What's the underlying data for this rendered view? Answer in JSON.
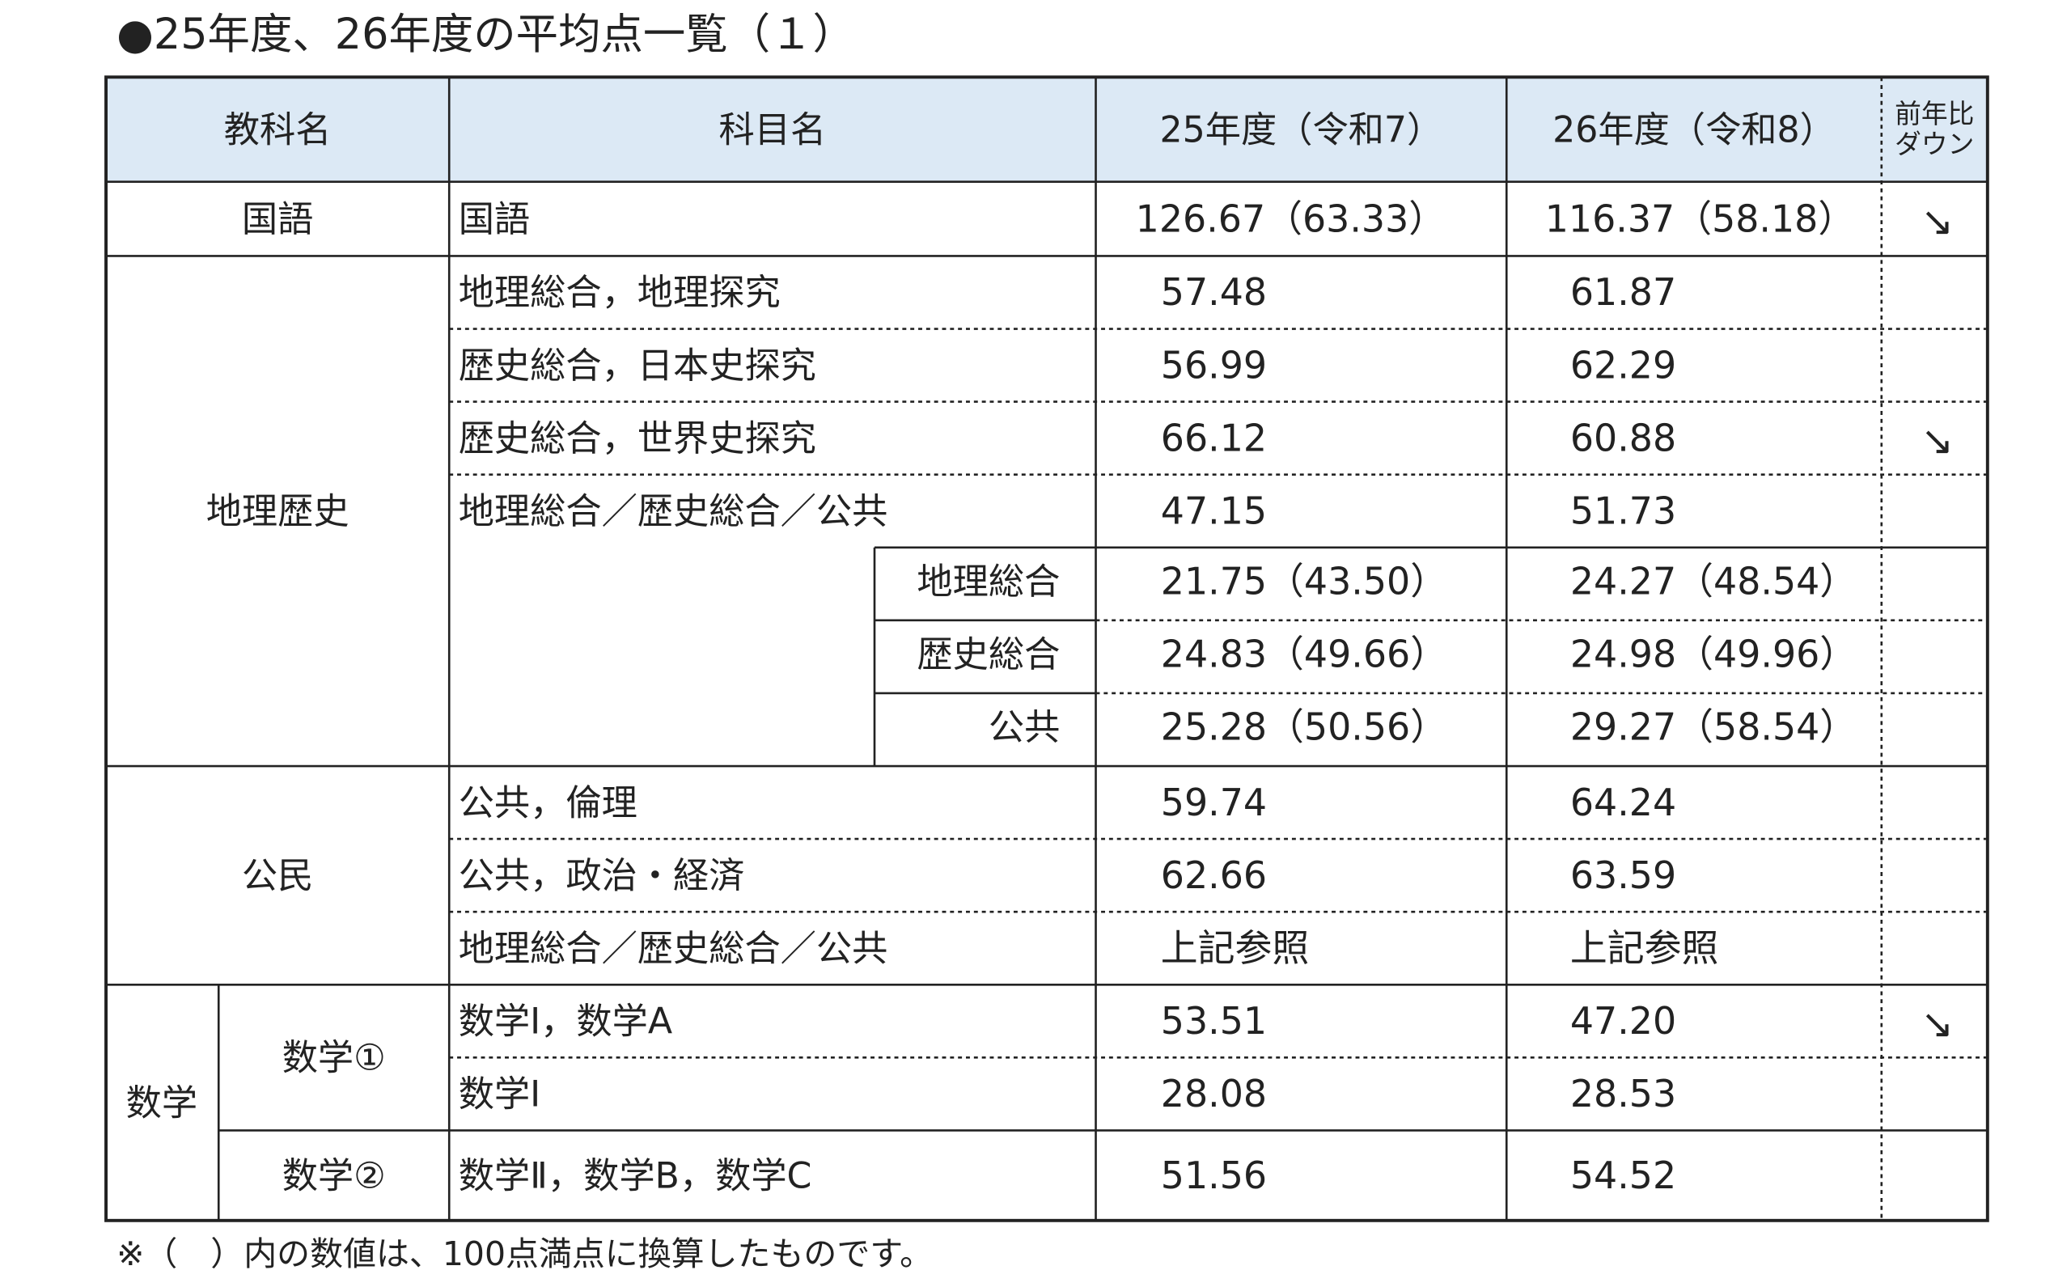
{
  "title": "●25年度、26年度の平均点一覧（１）",
  "header": {
    "columns": [
      "教科名",
      "科目名",
      "25年度（令和7）",
      "26年度（令和8）"
    ],
    "down_header": [
      "前年比",
      "ダウン"
    ]
  },
  "colors": {
    "down": "#2f74b5",
    "up": "#d7282f",
    "header_bg": "#dce9f5"
  },
  "sections": [
    {
      "label": "国語",
      "rows": [
        {
          "subject": "国語",
          "y25": "126.67（63.33）",
          "y26": "116.37（58.18）",
          "trend": "↘"
        }
      ]
    },
    {
      "label": "地理歴史",
      "rows": [
        {
          "subject": "地理総合，地理探究",
          "y25": "57.48",
          "y26": "61.87"
        },
        {
          "subject": "歴史総合，日本史探究",
          "y25": "56.99",
          "y26": "62.29"
        },
        {
          "subject": "歴史総合，世界史探究",
          "y25": "66.12",
          "y26": "60.88",
          "trend": "↘"
        },
        {
          "subject": "地理総合／歴史総合／公共",
          "y25": "47.15",
          "y26": "51.73",
          "subrows": [
            {
              "subject": "地理総合",
              "y25": "21.75（43.50）",
              "y26": "24.27（48.54）"
            },
            {
              "subject": "歴史総合",
              "y25": "24.83（49.66）",
              "y26": "24.98（49.96）"
            },
            {
              "subject": "公共",
              "y25": "25.28（50.56）",
              "y26": "29.27（58.54）"
            }
          ]
        }
      ]
    },
    {
      "label": "公民",
      "rows": [
        {
          "subject": "公共，倫理",
          "y25": "59.74",
          "y26": "64.24"
        },
        {
          "subject": "公共，政治・経済",
          "y25": "62.66",
          "y26": "63.59"
        },
        {
          "subject": "地理総合／歴史総合／公共",
          "y25": "上記参照",
          "y26": "上記参照"
        }
      ]
    },
    {
      "label": "数学",
      "subgroups": [
        {
          "label": "数学①",
          "rows": [
            {
              "subject": "数学Ⅰ，数学A",
              "y25": "53.51",
              "y26": "47.20",
              "trend": "↘"
            },
            {
              "subject": "数学Ⅰ",
              "y25": "28.08",
              "y26": "28.53"
            }
          ]
        },
        {
          "label": "数学②",
          "rows": [
            {
              "subject": "数学Ⅱ，数学B，数学C",
              "y25": "51.56",
              "y26": "54.52"
            }
          ]
        }
      ]
    }
  ],
  "footnote": "※（　）内の数値は、100点満点に換算したものです。"
}
